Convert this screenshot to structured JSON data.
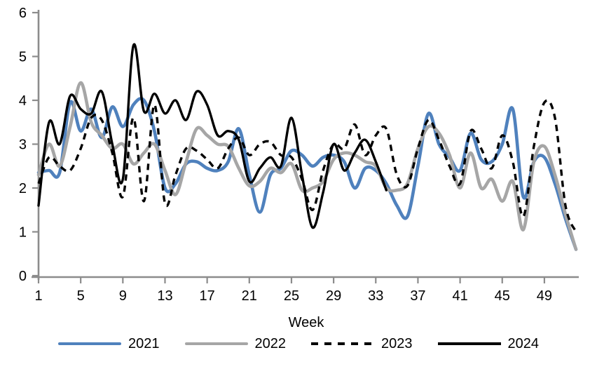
{
  "chart_data": {
    "type": "line",
    "title": "",
    "xlabel": "Week",
    "ylabel": "",
    "xlim": [
      1,
      52
    ],
    "ylim": [
      0,
      6
    ],
    "grid": false,
    "legend_position": "bottom",
    "axis_color": "#8C8C8C",
    "text_color": "#000000",
    "x_ticks": [
      1,
      5,
      9,
      13,
      17,
      21,
      25,
      29,
      33,
      37,
      41,
      45,
      49
    ],
    "y_ticks": [
      0,
      1,
      2,
      3,
      4,
      5,
      6
    ],
    "x_start_week": 1,
    "x_step_weeks": 1,
    "series": [
      {
        "name": "2021",
        "color": "#4F81BD",
        "style": "solid",
        "values": [
          2.35,
          2.4,
          2.35,
          3.95,
          3.3,
          3.8,
          3.15,
          3.85,
          3.4,
          3.9,
          4.0,
          3.3,
          2.0,
          2.1,
          2.55,
          2.6,
          2.45,
          2.4,
          2.6,
          3.35,
          2.3,
          1.45,
          2.3,
          2.45,
          2.85,
          2.75,
          2.5,
          2.7,
          2.75,
          2.6,
          2.0,
          2.45,
          2.4,
          2.1,
          1.6,
          1.35,
          2.5,
          3.7,
          3.0,
          2.7,
          2.4,
          3.25,
          2.65,
          2.6,
          3.0,
          3.8,
          1.8,
          2.6,
          2.7,
          2.1,
          1.3,
          0.6
        ]
      },
      {
        "name": "2022",
        "color": "#A6A6A6",
        "style": "solid",
        "values": [
          2.3,
          3.0,
          2.5,
          3.4,
          4.4,
          3.5,
          3.2,
          2.9,
          3.0,
          2.55,
          2.8,
          3.0,
          2.4,
          1.85,
          2.6,
          3.35,
          3.2,
          3.0,
          2.95,
          2.45,
          2.05,
          2.15,
          2.45,
          2.35,
          2.55,
          1.95,
          2.0,
          2.15,
          2.65,
          2.8,
          2.75,
          2.6,
          2.5,
          2.0,
          1.95,
          2.1,
          2.9,
          3.4,
          3.25,
          2.75,
          2.0,
          2.8,
          2.0,
          2.2,
          1.7,
          2.15,
          1.05,
          2.6,
          2.95,
          2.3,
          1.4,
          0.6
        ]
      },
      {
        "name": "2023",
        "color": "#000000",
        "style": "dashed",
        "values": [
          2.1,
          2.7,
          2.5,
          2.4,
          2.9,
          3.6,
          3.55,
          2.8,
          1.8,
          3.6,
          1.7,
          3.9,
          1.65,
          2.3,
          2.9,
          2.85,
          2.65,
          2.45,
          2.9,
          3.15,
          2.75,
          3.0,
          3.05,
          2.75,
          2.7,
          2.2,
          1.5,
          2.4,
          3.0,
          2.9,
          3.45,
          2.75,
          3.2,
          3.35,
          2.3,
          2.05,
          2.9,
          3.55,
          3.1,
          2.5,
          2.1,
          3.3,
          2.9,
          2.45,
          3.2,
          2.6,
          1.35,
          2.95,
          3.95,
          3.6,
          1.6,
          1.0
        ]
      },
      {
        "name": "2024",
        "color": "#000000",
        "style": "solid",
        "values": [
          1.6,
          3.5,
          3.0,
          4.1,
          3.8,
          3.7,
          4.2,
          3.0,
          2.2,
          5.25,
          3.75,
          4.15,
          3.7,
          4.0,
          3.55,
          4.2,
          3.9,
          3.2,
          3.3,
          3.1,
          2.15,
          2.45,
          2.7,
          2.5,
          3.6,
          2.3,
          1.1,
          1.9,
          3.0,
          2.4,
          2.8,
          3.1,
          2.6,
          1.95
        ]
      }
    ]
  }
}
